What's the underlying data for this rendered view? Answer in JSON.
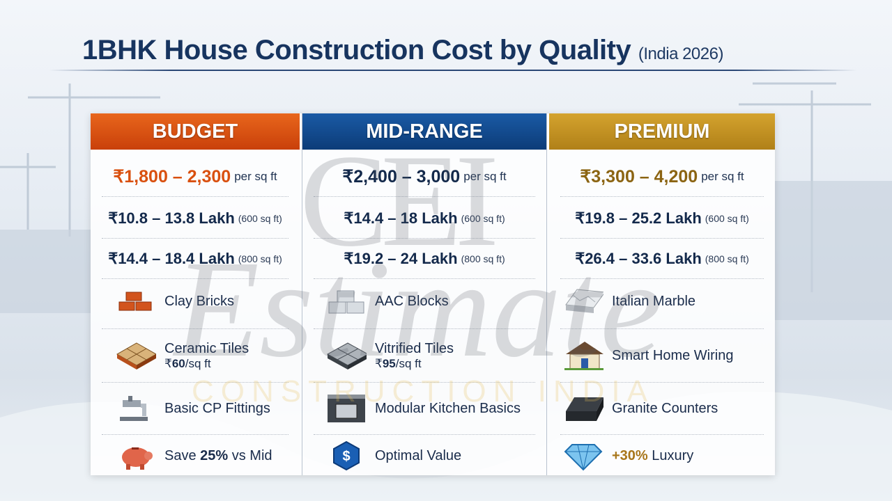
{
  "title": {
    "main": "1BHK House Construction Cost by Quality",
    "sub": "(India 2026)"
  },
  "watermark": {
    "logo": "CEI",
    "script": "Estimate",
    "tagline": "CONSTRUCTION INDIA"
  },
  "colors": {
    "budget": "#d9500f",
    "mid": "#0e4a8f",
    "premium": "#c3931f",
    "navy": "#13294b"
  },
  "columns": [
    {
      "name": "BUDGET",
      "price": "₹1,800 – 2,300",
      "unit": "per sq ft",
      "lakh600": "₹10.8 – 13.8 Lakh",
      "sq600": "(600 sq ft)",
      "lakh800": "₹14.4 – 18.4 Lakh",
      "sq800": "(800 sq ft)",
      "features": [
        {
          "icon": "brick-icon",
          "text": "Clay Bricks"
        },
        {
          "icon": "ceramic-tile-icon",
          "text": "Ceramic Tiles",
          "sub_prefix": "₹",
          "sub_value": "60",
          "sub_unit": "/sq ft"
        },
        {
          "icon": "faucet-icon",
          "text": "Basic CP Fittings"
        },
        {
          "icon": "piggy-bank-icon",
          "pre": "Save ",
          "bold": "25%",
          "post": " vs Mid"
        }
      ]
    },
    {
      "name": "MID-RANGE",
      "price": "₹2,400 – 3,000",
      "unit": "per sq ft",
      "lakh600": "₹14.4 – 18 Lakh",
      "sq600": "(600 sq ft)",
      "lakh800": "₹19.2 – 24 Lakh",
      "sq800": "(800 sq ft)",
      "features": [
        {
          "icon": "aac-block-icon",
          "text": "AAC Blocks"
        },
        {
          "icon": "vitrified-tile-icon",
          "text": "Vitrified Tiles",
          "sub_prefix": "₹",
          "sub_value": "95",
          "sub_unit": "/sq ft"
        },
        {
          "icon": "kitchen-icon",
          "text": "Modular Kitchen Basics"
        },
        {
          "icon": "dollar-shield-icon",
          "text": "Optimal Value"
        }
      ]
    },
    {
      "name": "PREMIUM",
      "price": "₹3,300 – 4,200",
      "unit": "per sq ft",
      "lakh600": "₹19.8 – 25.2 Lakh",
      "sq600": "(600 sq ft)",
      "lakh800": "₹26.4 – 33.6 Lakh",
      "sq800": "(800 sq ft)",
      "features": [
        {
          "icon": "marble-icon",
          "text": "Italian Marble"
        },
        {
          "icon": "smart-home-icon",
          "text": "Smart Home Wiring"
        },
        {
          "icon": "granite-icon",
          "text": "Granite Counters"
        },
        {
          "icon": "diamond-icon",
          "bold": "+30%",
          "post": " Luxury"
        }
      ]
    }
  ]
}
